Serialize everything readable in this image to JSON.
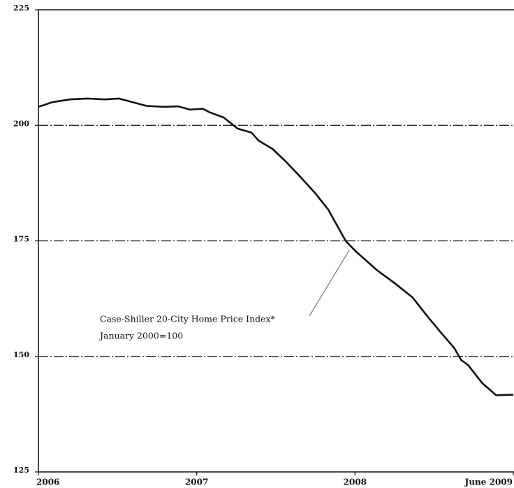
{
  "chart_data": {
    "type": "line",
    "x": [
      2006.0,
      2006.088,
      2006.199,
      2006.309,
      2006.419,
      2006.508,
      2006.596,
      2006.684,
      2006.795,
      2006.883,
      2006.958,
      2007.038,
      2007.082,
      2007.17,
      2007.258,
      2007.347,
      2007.391,
      2007.479,
      2007.567,
      2007.656,
      2007.744,
      2007.832,
      2007.876,
      2007.943,
      2008.009,
      2008.141,
      2008.252,
      2008.362,
      2008.45,
      2008.539,
      2008.627,
      2008.671,
      2008.715,
      2008.804,
      2008.892,
      2009.0
    ],
    "series": [
      {
        "name": "Case-Shiller 20-City Home Price Index*",
        "color": "#111111",
        "values": [
          204.0,
          205.0,
          205.6,
          205.8,
          205.6,
          205.8,
          205.0,
          204.2,
          204.0,
          204.1,
          203.4,
          203.6,
          202.8,
          201.7,
          199.3,
          198.4,
          196.7,
          194.9,
          192.0,
          188.8,
          185.5,
          181.7,
          179.0,
          174.9,
          172.6,
          168.6,
          165.8,
          162.8,
          159.0,
          155.3,
          151.8,
          149.2,
          148.1,
          144.2,
          141.6,
          141.7
        ]
      }
    ],
    "annotation": [
      "Case-Shiller 20-City Home Price Index*",
      "January 2000=100"
    ],
    "xlim": [
      2006,
      2009
    ],
    "xticks": [
      2006,
      2007,
      2008,
      {
        "value": 2009,
        "label": "June 2009"
      }
    ],
    "ylim": [
      125,
      225
    ],
    "yticks": [
      125,
      150,
      175,
      200,
      225
    ],
    "grid": true
  }
}
